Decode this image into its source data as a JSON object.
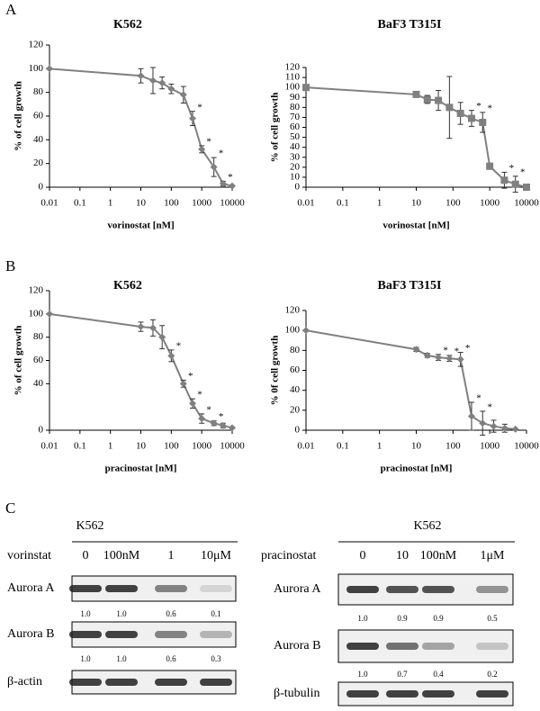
{
  "panels": [
    "A",
    "B",
    "C"
  ],
  "chart_data": [
    {
      "type": "line",
      "title": "K562",
      "xlabel": "vorinostat [nM]",
      "ylabel": "% of cell growth",
      "x": [
        0.01,
        10,
        25,
        50,
        100,
        250,
        500,
        1000,
        2500,
        5000,
        10000
      ],
      "values": [
        100,
        94,
        90,
        88,
        83,
        78,
        58,
        32,
        17,
        3,
        1
      ],
      "errors": [
        0,
        6,
        11,
        5,
        4,
        7,
        6,
        3,
        8,
        2,
        0
      ],
      "significance": [
        null,
        null,
        null,
        null,
        null,
        null,
        "*",
        "*",
        "*",
        "*",
        null
      ],
      "color": "#808080",
      "marker": "diamond",
      "xscale": "log",
      "xlim": [
        0.01,
        10000
      ],
      "ylim": [
        0,
        120
      ],
      "xticks": [
        0.01,
        0.1,
        1,
        10,
        100,
        1000,
        10000
      ],
      "yticks": [
        0,
        20,
        40,
        60,
        80,
        100,
        120
      ]
    },
    {
      "type": "line",
      "title": "BaF3 T315I",
      "xlabel": "vorinostat [nM]",
      "ylabel": "% of cell growth",
      "x": [
        0.01,
        10,
        20,
        40,
        80,
        160,
        320,
        640,
        1000,
        2500,
        5000,
        10000
      ],
      "values": [
        100,
        93,
        88,
        87,
        80,
        74,
        69,
        65,
        21,
        7,
        3,
        0
      ],
      "errors": [
        0,
        2,
        4,
        10,
        31,
        11,
        8,
        10,
        3,
        8,
        8,
        0
      ],
      "significance": [
        null,
        null,
        null,
        null,
        null,
        null,
        "*",
        "*",
        null,
        "*",
        "*",
        null
      ],
      "color": "#808080",
      "marker": "square",
      "xscale": "log",
      "xlim": [
        0.01,
        10000
      ],
      "ylim": [
        0,
        120
      ],
      "xticks": [
        0.01,
        0.1,
        1,
        10,
        100,
        1000,
        10000
      ],
      "yticks": [
        0,
        10,
        20,
        30,
        40,
        50,
        60,
        70,
        80,
        90,
        100,
        110,
        120
      ]
    },
    {
      "type": "line",
      "title": "K562",
      "xlabel": "pracinostat  [nM]",
      "ylabel": "% of cell growth",
      "x": [
        0.01,
        10,
        25,
        50,
        100,
        250,
        500,
        1000,
        2500,
        5000,
        10000
      ],
      "values": [
        100,
        89,
        88,
        80,
        64,
        40,
        23,
        10,
        6,
        4,
        2
      ],
      "errors": [
        0,
        4,
        7,
        10,
        5,
        3,
        4,
        4,
        2,
        2,
        0
      ],
      "significance": [
        null,
        null,
        null,
        null,
        "*",
        "*",
        "*",
        "*",
        "*",
        null,
        null
      ],
      "color": "#808080",
      "marker": "diamond",
      "xscale": "log",
      "xlim": [
        0.01,
        10000
      ],
      "ylim": [
        0,
        120
      ],
      "xticks": [
        0.01,
        0.1,
        1,
        10,
        100,
        1000,
        10000
      ],
      "yticks": [
        0,
        40,
        60,
        80,
        100,
        120
      ]
    },
    {
      "type": "line",
      "title": "BaF3 T315I",
      "xlabel": "pracinostat [nM]",
      "ylabel": "% 0f cell growth",
      "x": [
        0.01,
        10,
        20,
        40,
        80,
        160,
        320,
        640,
        1280,
        2560,
        5000
      ],
      "values": [
        100,
        81,
        75,
        73,
        72,
        71,
        14,
        7,
        4,
        2,
        1
      ],
      "errors": [
        0,
        2,
        2,
        3,
        3,
        7,
        14,
        12,
        6,
        4,
        0
      ],
      "significance": [
        null,
        null,
        null,
        "*",
        "*",
        "*",
        "*",
        "*",
        null,
        null,
        null
      ],
      "color": "#808080",
      "marker": "diamond",
      "xscale": "log",
      "xlim": [
        0.01,
        10000
      ],
      "ylim": [
        0,
        120
      ],
      "xticks": [
        0.01,
        0.1,
        1,
        10,
        100,
        1000,
        10000
      ],
      "yticks": [
        0,
        20,
        40,
        60,
        80,
        100,
        120
      ]
    }
  ],
  "blots": [
    {
      "title": "K562",
      "treatment": "vorinstat",
      "doses": [
        "0",
        "100nM",
        "1",
        "10μM"
      ],
      "rows": [
        {
          "label": "Aurora A",
          "quant": [
            "1.0",
            "1.0",
            "0.6",
            "0.1"
          ]
        },
        {
          "label": "Aurora B",
          "quant": [
            "1.0",
            "1.0",
            "0.6",
            "0.3"
          ]
        }
      ],
      "loading": "β-actin"
    },
    {
      "title": "K562",
      "treatment": "pracinostat",
      "doses": [
        "0",
        "10",
        "100nM",
        "1μM"
      ],
      "rows": [
        {
          "label": "Aurora A",
          "quant": [
            "1.0",
            "0.9",
            "0.9",
            "0.5"
          ]
        },
        {
          "label": "Aurora B",
          "quant": [
            "1.0",
            "0.7",
            "0.4",
            "0.2"
          ]
        }
      ],
      "loading": "β-tubulin"
    }
  ]
}
